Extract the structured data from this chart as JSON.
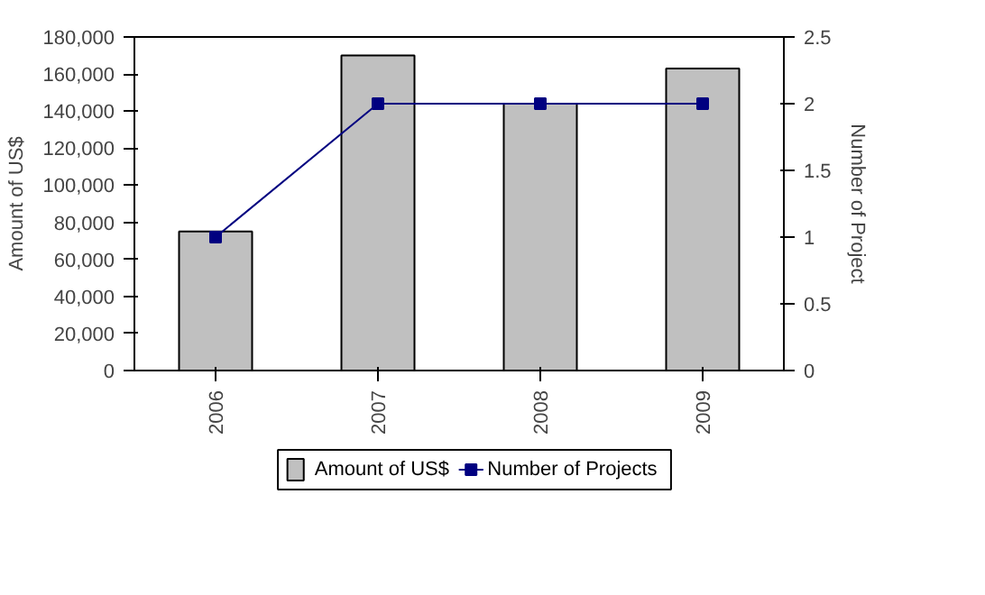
{
  "chart_data": {
    "type": "bar",
    "categories": [
      "2006",
      "2007",
      "2008",
      "2009"
    ],
    "ylabel": "Amount of US$",
    "y2label": "Number of Project",
    "ylim": [
      0,
      180000
    ],
    "yticks": [
      0,
      {
        "value": 20000,
        "label": "20,000"
      },
      {
        "value": 40000,
        "label": "40,000"
      },
      {
        "value": 60000,
        "label": "60,000"
      },
      {
        "value": 80000,
        "label": "80,000"
      },
      {
        "value": 100000,
        "label": "100,000"
      },
      {
        "value": 120000,
        "label": "120,000"
      },
      {
        "value": 140000,
        "label": "140,000"
      },
      {
        "value": 160000,
        "label": "160,000"
      },
      {
        "value": 180000,
        "label": "180,000"
      }
    ],
    "y2lim": [
      0,
      2.5
    ],
    "y2ticks": [
      0,
      0.5,
      1,
      1.5,
      2,
      2.5
    ],
    "series": [
      {
        "name": "Amount of US$",
        "color": "#c0c0c0",
        "values": [
          75000,
          170000,
          144000,
          163000
        ]
      },
      {
        "name": "Number of Projects",
        "type": "line",
        "axis": "y2",
        "color": "#000080",
        "values": [
          1,
          2,
          2,
          2
        ]
      }
    ],
    "marker": "square",
    "legend": "bottom"
  }
}
